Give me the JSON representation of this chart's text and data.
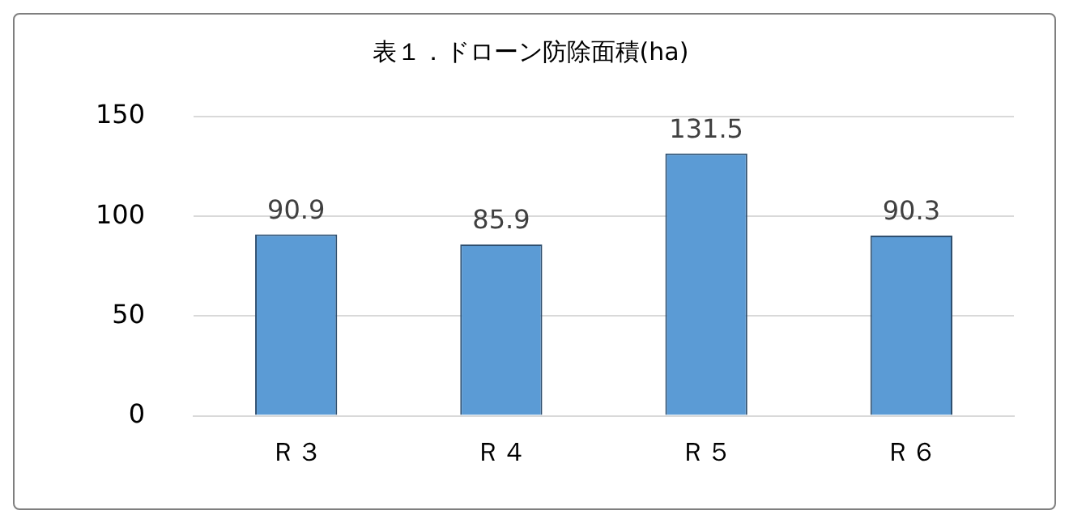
{
  "chart_data": {
    "type": "bar",
    "title": "表１．ドローン防除面積(ha)",
    "categories": [
      "Ｒ３",
      "Ｒ４",
      "Ｒ５",
      "Ｒ６"
    ],
    "values": [
      90.9,
      85.9,
      131.5,
      90.3
    ],
    "color": "#5b9bd5",
    "ylim": [
      0,
      150
    ],
    "yticks": [
      0,
      50,
      100,
      150
    ],
    "grid": "y",
    "data_labels": true,
    "legend": false
  }
}
